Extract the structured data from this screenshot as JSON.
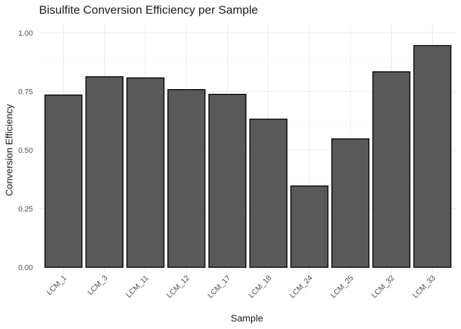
{
  "chart_data": {
    "type": "bar",
    "title": "Bisulfite Conversion Efficiency per Sample",
    "xlabel": "Sample",
    "ylabel": "Conversion Efficiency",
    "categories": [
      "LCM_1",
      "LCM_3",
      "LCM_11",
      "LCM_12",
      "LCM_17",
      "LCM_18",
      "LCM_24",
      "LCM_25",
      "LCM_32",
      "LCM_33"
    ],
    "values": [
      0.735,
      0.813,
      0.808,
      0.758,
      0.738,
      0.632,
      0.347,
      0.548,
      0.834,
      0.946
    ],
    "ylim": [
      0,
      1.0
    ],
    "yticks": [
      0.0,
      0.25,
      0.5,
      0.75,
      1.0
    ],
    "ytick_labels": [
      "0.00",
      "0.25",
      "0.50",
      "0.75",
      "1.00"
    ],
    "grid": true,
    "bar_fill": "#595959",
    "bar_outline": "#000000"
  }
}
